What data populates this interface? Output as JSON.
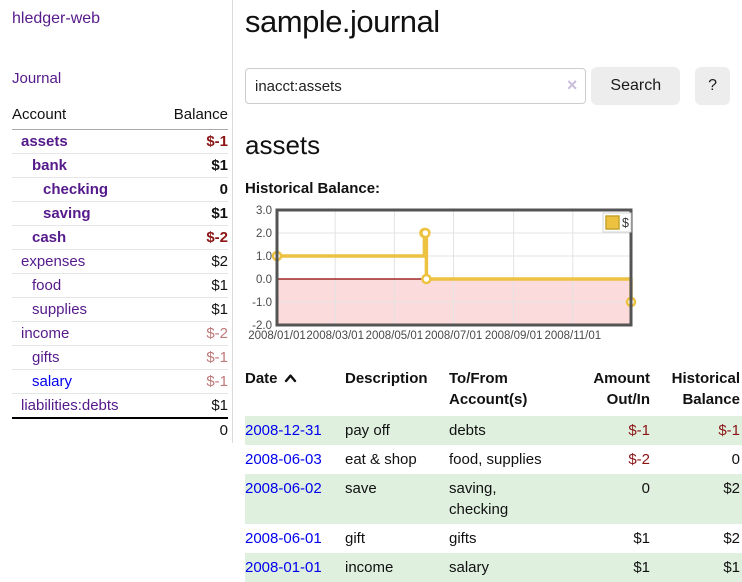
{
  "sidebar": {
    "brand": "hledger-web",
    "journal_link": "Journal",
    "table": {
      "headers": {
        "account": "Account",
        "balance": "Balance"
      },
      "accounts": [
        {
          "name": "assets",
          "indent": 1,
          "bold": true,
          "link_color": "purple",
          "balance": "$-1",
          "balance_color": "neg",
          "balance_bold": true
        },
        {
          "name": "bank",
          "indent": 2,
          "bold": true,
          "link_color": "purple",
          "balance": "$1",
          "balance_color": "",
          "balance_bold": true
        },
        {
          "name": "checking",
          "indent": 3,
          "bold": true,
          "link_color": "purple",
          "balance": "0",
          "balance_color": "",
          "balance_bold": true
        },
        {
          "name": "saving",
          "indent": 3,
          "bold": true,
          "link_color": "purple",
          "balance": "$1",
          "balance_color": "",
          "balance_bold": true
        },
        {
          "name": "cash",
          "indent": 2,
          "bold": true,
          "link_color": "purple",
          "balance": "$-2",
          "balance_color": "neg",
          "balance_bold": true
        },
        {
          "name": "expenses",
          "indent": 1,
          "bold": false,
          "link_color": "purple",
          "balance": "$2",
          "balance_color": "",
          "balance_bold": false
        },
        {
          "name": "food",
          "indent": 2,
          "bold": false,
          "link_color": "purple",
          "balance": "$1",
          "balance_color": "",
          "balance_bold": false
        },
        {
          "name": "supplies",
          "indent": 2,
          "bold": false,
          "link_color": "purple",
          "balance": "$1",
          "balance_color": "",
          "balance_bold": false
        },
        {
          "name": "income",
          "indent": 1,
          "bold": false,
          "link_color": "purple",
          "balance": "$-2",
          "balance_color": "soft-neg",
          "balance_bold": false
        },
        {
          "name": "gifts",
          "indent": 2,
          "bold": false,
          "link_color": "purple",
          "balance": "$-1",
          "balance_color": "soft-neg",
          "balance_bold": false
        },
        {
          "name": "salary",
          "indent": 2,
          "bold": false,
          "link_color": "blue",
          "balance": "$-1",
          "balance_color": "soft-neg",
          "balance_bold": false
        },
        {
          "name": "liabilities:debts",
          "indent": 1,
          "bold": false,
          "link_color": "purple",
          "balance": "$1",
          "balance_color": "",
          "balance_bold": false
        }
      ],
      "total": "0"
    }
  },
  "main": {
    "title": "sample.journal",
    "search": {
      "value": "inacct:assets",
      "clear_icon": "×",
      "button_label": "Search",
      "help_label": "?"
    },
    "account_heading": "assets",
    "chart_label": "Historical Balance:",
    "register": {
      "headers": [
        "Date",
        "Description",
        "To/From\nAccount(s)",
        "Amount\nOut/In",
        "Historical\nBalance"
      ],
      "rows": [
        {
          "date": "2008-12-31",
          "description": "pay off",
          "accounts": "debts",
          "amount": "$-1",
          "amount_neg": true,
          "balance": "$-1",
          "balance_neg": true
        },
        {
          "date": "2008-06-03",
          "description": "eat & shop",
          "accounts": "food, supplies",
          "amount": "$-2",
          "amount_neg": true,
          "balance": "0",
          "balance_neg": false
        },
        {
          "date": "2008-06-02",
          "description": "save",
          "accounts": "saving,\nchecking",
          "amount": "0",
          "amount_neg": false,
          "balance": "$2",
          "balance_neg": false
        },
        {
          "date": "2008-06-01",
          "description": "gift",
          "accounts": "gifts",
          "amount": "$1",
          "amount_neg": false,
          "balance": "$2",
          "balance_neg": false
        },
        {
          "date": "2008-01-01",
          "description": "income",
          "accounts": "salary",
          "amount": "$1",
          "amount_neg": false,
          "balance": "$1",
          "balance_neg": false
        }
      ]
    }
  },
  "chart_data": {
    "type": "line",
    "subtype": "step",
    "title": "Historical Balance",
    "series": [
      {
        "name": "$",
        "color": "#edc240",
        "points": [
          [
            "2008-01-01",
            1
          ],
          [
            "2008-06-01",
            2
          ],
          [
            "2008-06-02",
            2
          ],
          [
            "2008-06-03",
            0
          ],
          [
            "2008-12-31",
            -1
          ]
        ]
      }
    ],
    "xlim": [
      "2008-01-01",
      "2008-12-31"
    ],
    "ylim": [
      -2,
      3
    ],
    "yticks": [
      3.0,
      2.0,
      1.0,
      0.0,
      -1.0,
      -2.0
    ],
    "xticks": [
      {
        "date": "2008-01-01",
        "label": "2008/01/01"
      },
      {
        "date": "2008-03-01",
        "label": "2008/03/01"
      },
      {
        "date": "2008-05-01",
        "label": "2008/05/01"
      },
      {
        "date": "2008-07-01",
        "label": "2008/07/01"
      },
      {
        "date": "2008-09-01",
        "label": "2008/09/01"
      },
      {
        "date": "2008-11-01",
        "label": "2008/11/01"
      }
    ],
    "grid": true,
    "legend_position": "top-right",
    "zero_line_color": "#8b0000",
    "below_zero_fill": "#fbdbdb",
    "border_color": "#545454"
  },
  "icons": {
    "sort_ascending": "chevron-up",
    "clear_search": "×"
  },
  "colors": {
    "link_purple": "#551a8b",
    "link_blue": "#0000ee",
    "negative_strong": "#8b1414",
    "negative_soft": "#bd7878",
    "row_green": "#dff0df",
    "series_gold": "#edc240"
  }
}
